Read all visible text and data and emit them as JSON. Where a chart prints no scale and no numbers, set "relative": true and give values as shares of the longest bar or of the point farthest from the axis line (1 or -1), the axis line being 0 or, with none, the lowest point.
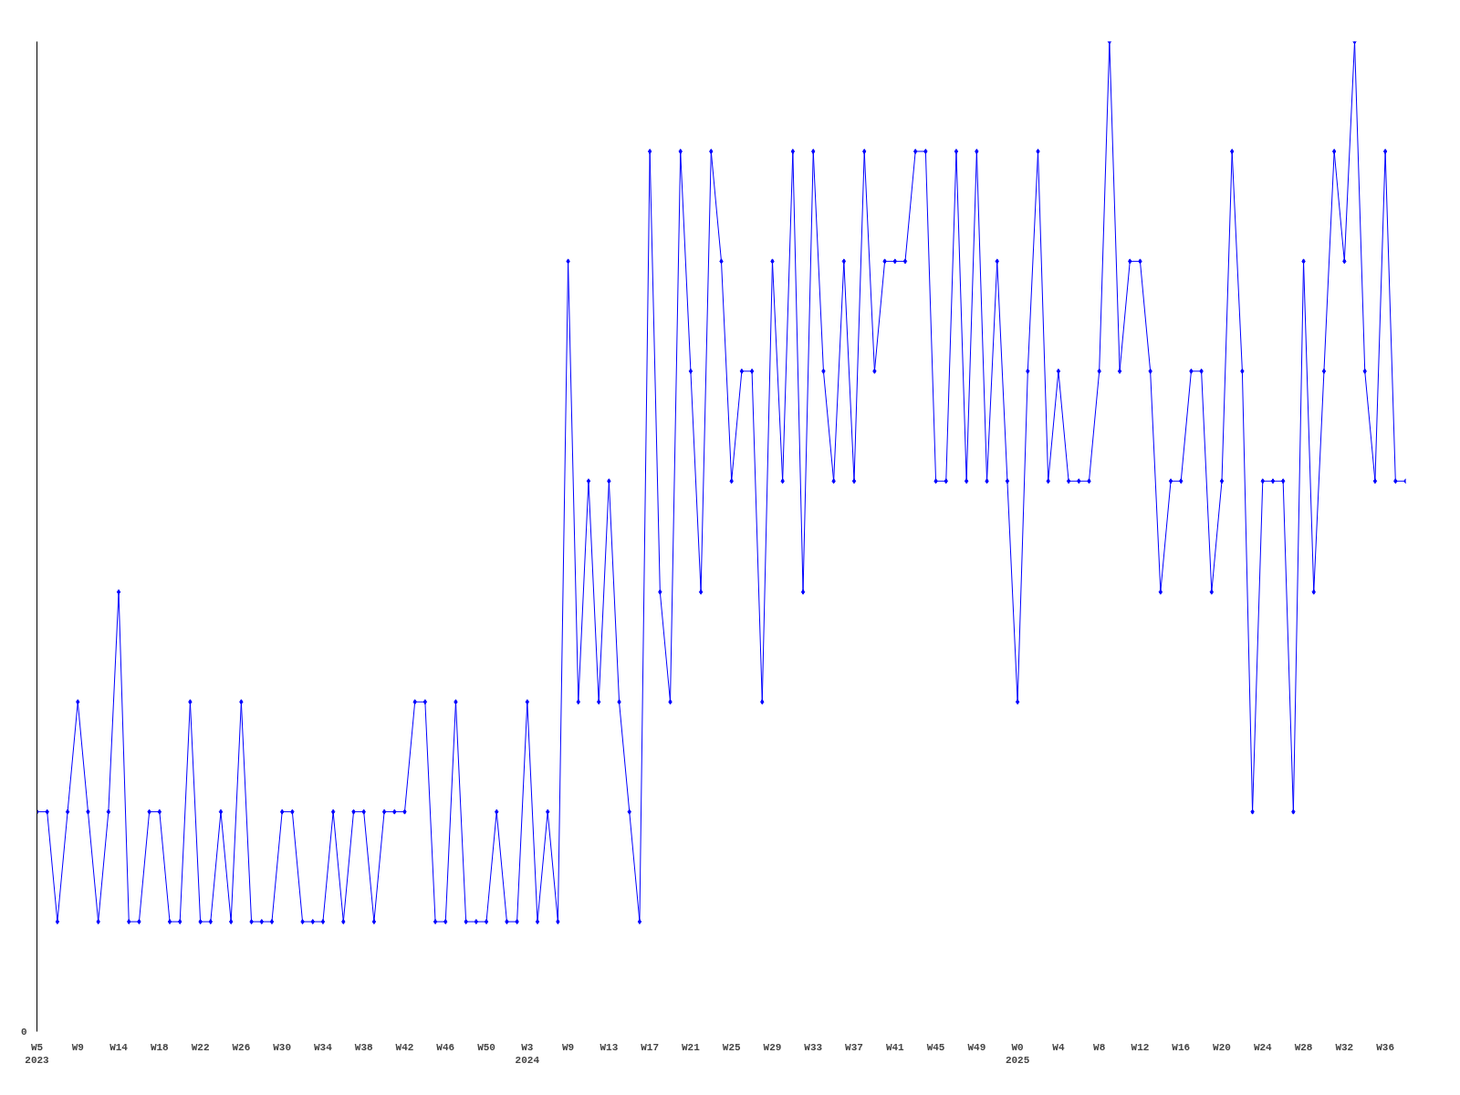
{
  "chart_data": {
    "type": "line",
    "relative": true,
    "marker": "diamond",
    "grid": false,
    "annotations": [
      "0"
    ],
    "categories": [
      "W5\n2023",
      null,
      null,
      null,
      "W9",
      null,
      null,
      null,
      "W14",
      null,
      null,
      null,
      "W18",
      null,
      null,
      null,
      "W22",
      null,
      null,
      null,
      "W26",
      null,
      null,
      null,
      "W30",
      null,
      null,
      null,
      "W34",
      null,
      null,
      null,
      "W38",
      null,
      null,
      null,
      "W42",
      null,
      null,
      null,
      "W46",
      null,
      null,
      null,
      "W50",
      null,
      null,
      null,
      "W3\n2024",
      null,
      null,
      null,
      "W9",
      null,
      null,
      null,
      "W13",
      null,
      null,
      null,
      "W17",
      null,
      null,
      null,
      "W21",
      null,
      null,
      null,
      "W25",
      null,
      null,
      null,
      "W29",
      null,
      null,
      null,
      "W33",
      null,
      null,
      null,
      "W37",
      null,
      null,
      null,
      "W41",
      null,
      null,
      null,
      "W45",
      null,
      null,
      null,
      "W49",
      null,
      null,
      null,
      "W0\n2025",
      null,
      null,
      null,
      "W4",
      null,
      null,
      null,
      "W8",
      null,
      null,
      null,
      "W12",
      null,
      null,
      null,
      "W16",
      null,
      null,
      null,
      "W20",
      null,
      null,
      null,
      "W24",
      null,
      null,
      null,
      "W28",
      null,
      null,
      null,
      "W32",
      null,
      null,
      null,
      "W36",
      null,
      null
    ],
    "series": [
      {
        "color": "#0000ff",
        "values": [
          0.222,
          0.222,
          0.111,
          0.222,
          0.333,
          0.222,
          0.111,
          0.222,
          0.444,
          0.111,
          0.111,
          0.222,
          0.222,
          0.111,
          0.111,
          0.333,
          0.111,
          0.111,
          0.222,
          0.111,
          0.333,
          0.111,
          0.111,
          0.111,
          0.222,
          0.222,
          0.111,
          0.111,
          0.111,
          0.222,
          0.111,
          0.222,
          0.222,
          0.111,
          0.222,
          0.222,
          0.222,
          0.333,
          0.333,
          0.111,
          0.111,
          0.333,
          0.111,
          0.111,
          0.111,
          0.222,
          0.111,
          0.111,
          0.333,
          0.111,
          0.222,
          0.111,
          0.778,
          0.333,
          0.556,
          0.333,
          0.556,
          0.333,
          0.222,
          0.111,
          0.889,
          0.444,
          0.333,
          0.889,
          0.667,
          0.444,
          0.889,
          0.778,
          0.556,
          0.667,
          0.667,
          0.333,
          0.778,
          0.556,
          0.889,
          0.444,
          0.889,
          0.667,
          0.556,
          0.778,
          0.556,
          0.889,
          0.667,
          0.778,
          0.778,
          0.778,
          0.889,
          0.889,
          0.556,
          0.556,
          0.889,
          0.556,
          0.889,
          0.556,
          0.778,
          0.556,
          0.333,
          0.667,
          0.889,
          0.556,
          0.667,
          0.556,
          0.556,
          0.556,
          0.667,
          1,
          0.667,
          0.778,
          0.778,
          0.667,
          0.444,
          0.556,
          0.556,
          0.667,
          0.667,
          0.444,
          0.556,
          0.889,
          0.667,
          0.222,
          0.556,
          0.556,
          0.556,
          0.222,
          0.778,
          0.444,
          0.667,
          0.889,
          0.778,
          1,
          0.667,
          0.556,
          0.889,
          0.556,
          0.556
        ]
      }
    ]
  }
}
